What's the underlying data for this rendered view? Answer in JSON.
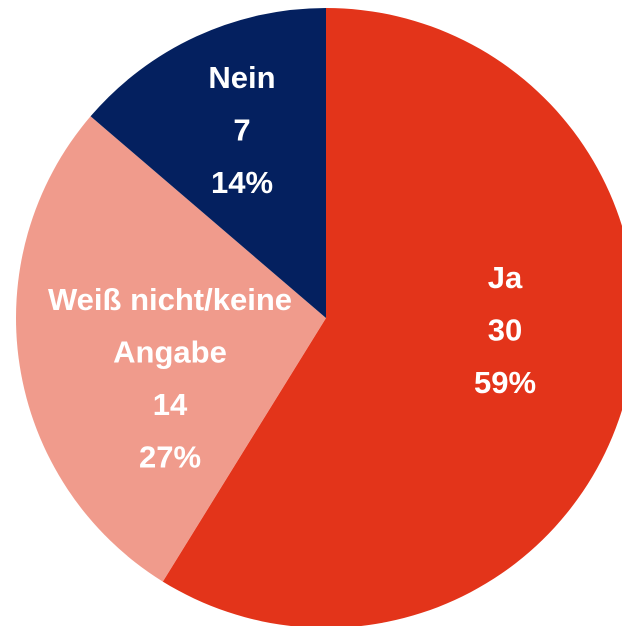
{
  "chart_data": {
    "type": "pie",
    "categories": [
      "Ja",
      "Weiß nicht/keine Angabe",
      "Nein"
    ],
    "category_lines": [
      [
        "Ja"
      ],
      [
        "Weiß nicht/keine",
        "Angabe"
      ],
      [
        "Nein"
      ]
    ],
    "values": [
      30,
      14,
      7
    ],
    "percent_values": [
      59,
      27,
      14
    ],
    "percent_labels": [
      "59%",
      "27%",
      "14%"
    ],
    "colors": [
      "#e3341a",
      "#f09b8c",
      "#04205f"
    ]
  }
}
